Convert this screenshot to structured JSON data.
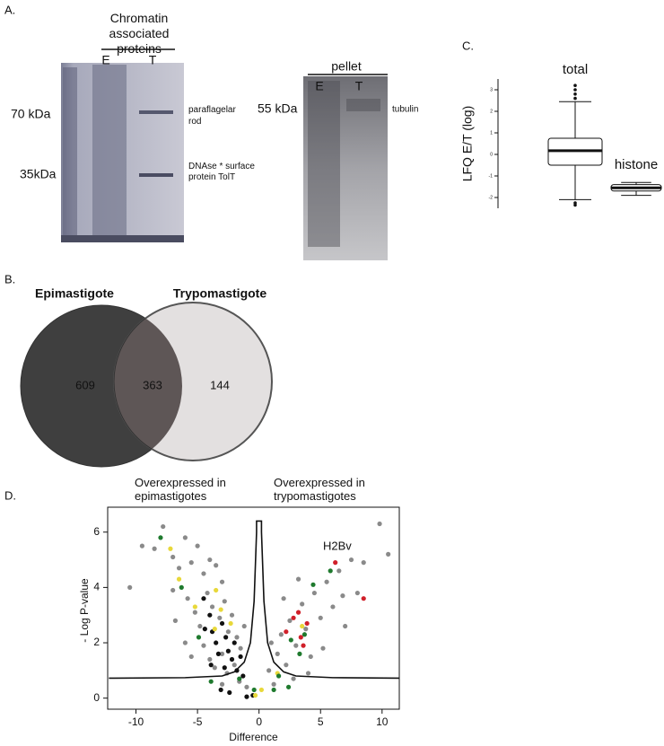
{
  "panels": {
    "a": {
      "label": "A.",
      "gel1_title": "Chromatin associated proteins",
      "gel1_lanes": [
        "E",
        "T"
      ],
      "gel1_markers": [
        "70 kDa",
        "35kDa"
      ],
      "gel1_bands": [
        "paraflagelar rod",
        "DNAse * surface protein TolT"
      ],
      "gel2_title": "pellet",
      "gel2_lanes": [
        "E",
        "T"
      ],
      "gel2_marker": "55 kDa",
      "gel2_band": "tubulin"
    },
    "b": {
      "label": "B."
    },
    "c": {
      "label": "C."
    },
    "d": {
      "label": "D."
    }
  },
  "chart_data": [
    {
      "type": "box",
      "y_label": "LFQ E/T (log)",
      "categories": [
        "total",
        "histone"
      ],
      "boxes": [
        {
          "min": -2.1,
          "q1": -0.5,
          "median": 0.17,
          "q3": 0.75,
          "max": 2.45,
          "outliers": [
            2.6,
            2.8,
            3.0,
            3.2,
            -2.25,
            -2.35
          ]
        },
        {
          "min": -1.9,
          "q1": -1.7,
          "median": -1.55,
          "q3": -1.4,
          "max": -1.3,
          "outliers": []
        }
      ],
      "ylim": [
        -2.5,
        3.5
      ],
      "yticks": [
        -2,
        -1,
        0,
        1,
        2,
        3
      ]
    },
    {
      "type": "venn",
      "sets": [
        "Epimastigote",
        "Trypomastigote"
      ],
      "values": [
        609,
        363,
        144
      ],
      "colors": [
        "#3f3f3f",
        "#e3e0e0"
      ],
      "overlap_color": "#5e5656"
    },
    {
      "type": "scatter",
      "x_label": "Difference",
      "y_label": "- Log P-value",
      "annotations": [
        "Overexpressed in epimastigotes",
        "Overexpressed in trypomastigotes",
        "H2Bv"
      ],
      "xlim": [
        -12.3,
        11.4
      ],
      "ylim": [
        -0.4,
        6.9
      ],
      "xticks": [
        -10,
        -5,
        0,
        5,
        10
      ],
      "yticks": [
        0,
        2,
        4,
        6
      ],
      "curve": {
        "x": [
          -12.2,
          -6,
          -3,
          -2,
          -1.2,
          -0.7,
          -0.4,
          -0.2,
          -0.2,
          0.2,
          0.2,
          0.4,
          0.7,
          1.2,
          2,
          3,
          6,
          11.4
        ],
        "y": [
          0.72,
          0.74,
          0.8,
          0.95,
          1.3,
          2.0,
          3.5,
          6.0,
          6.4,
          6.4,
          6.0,
          3.5,
          2.0,
          1.3,
          0.95,
          0.8,
          0.74,
          0.72
        ]
      },
      "series": [
        {
          "color": "#8a8a8a",
          "x": [
            -8.5,
            -7.8,
            -7,
            -6.5,
            -6,
            -5.5,
            -5,
            -4.5,
            -4,
            -3.5,
            -3,
            -5.8,
            -5.2,
            -4.8,
            -4.2,
            -3.8,
            -3.2,
            -2.8,
            -2.5,
            -2.2,
            -1.8,
            -1.5,
            -1.2,
            -4.5,
            -4,
            -3.6,
            -3,
            -2.6,
            -2,
            -1.6,
            -1,
            -6,
            -5.5,
            -7,
            -6.8,
            -3,
            0.8,
            1.2,
            1.5,
            1.8,
            2.2,
            2.5,
            2.8,
            3,
            3.5,
            3.8,
            4.2,
            4.5,
            5,
            5.5,
            6,
            6.5,
            7,
            7.5,
            8,
            8.5,
            9.8,
            10.5,
            3.2,
            2,
            4,
            5.2,
            6.8,
            1,
            -9.5,
            -10.5
          ],
          "values": [
            5.4,
            6.2,
            5.1,
            4.7,
            5.8,
            4.9,
            5.5,
            4.5,
            5.0,
            4.8,
            4.2,
            3.6,
            3.1,
            2.6,
            3.8,
            3.3,
            2.9,
            3.5,
            2.4,
            3.0,
            2.2,
            1.8,
            2.6,
            1.9,
            1.4,
            1.1,
            1.6,
            0.9,
            1.2,
            0.6,
            0.4,
            2.0,
            1.5,
            3.9,
            2.8,
            0.5,
            1.0,
            0.5,
            1.6,
            2.3,
            1.2,
            2.8,
            0.7,
            1.9,
            3.4,
            2.5,
            1.5,
            3.8,
            2.9,
            4.2,
            3.3,
            4.6,
            2.6,
            5.0,
            3.8,
            4.9,
            6.3,
            5.2,
            4.3,
            3.6,
            0.9,
            1.8,
            3.7,
            2.0,
            5.5,
            4.0
          ]
        },
        {
          "color": "#111111",
          "x": [
            -4.5,
            -4,
            -3.8,
            -3.5,
            -3.3,
            -3,
            -2.7,
            -2.5,
            -2.2,
            -2,
            -1.8,
            -1.5,
            -1.3,
            -3.9,
            -4.4,
            -2.8,
            -3.1,
            -2.4,
            -0.5,
            -1
          ],
          "values": [
            3.6,
            3.0,
            2.4,
            2.0,
            1.6,
            2.7,
            2.2,
            1.7,
            1.4,
            2.0,
            1.0,
            1.5,
            0.8,
            1.2,
            2.5,
            1.1,
            0.3,
            0.2,
            0.1,
            0.05
          ]
        },
        {
          "color": "#e8d83a",
          "x": [
            -7.2,
            -6.5,
            -5.2,
            -3.5,
            -3.1,
            -2.3,
            -3.6,
            -0.3,
            0.2,
            3.5,
            1.5
          ],
          "values": [
            5.4,
            4.3,
            3.3,
            3.9,
            3.2,
            2.7,
            2.5,
            0.1,
            0.3,
            2.6,
            0.9
          ]
        },
        {
          "color": "#1f7a2e",
          "x": [
            -8,
            -6.3,
            -4.9,
            -3.9,
            -1.6,
            -0.4,
            1.2,
            1.6,
            2.4,
            3.3,
            3.7,
            4.4,
            5.8,
            2.6
          ],
          "values": [
            5.8,
            4.0,
            2.2,
            0.6,
            0.7,
            0.3,
            0.3,
            0.8,
            0.4,
            1.6,
            2.3,
            4.1,
            4.6,
            2.1
          ]
        },
        {
          "color": "#d0202a",
          "x": [
            2.2,
            2.8,
            3.2,
            3.4,
            3.9,
            3.6,
            6.2,
            8.5
          ],
          "values": [
            2.4,
            2.9,
            3.1,
            2.2,
            2.7,
            1.9,
            4.9,
            3.6
          ]
        }
      ]
    }
  ]
}
